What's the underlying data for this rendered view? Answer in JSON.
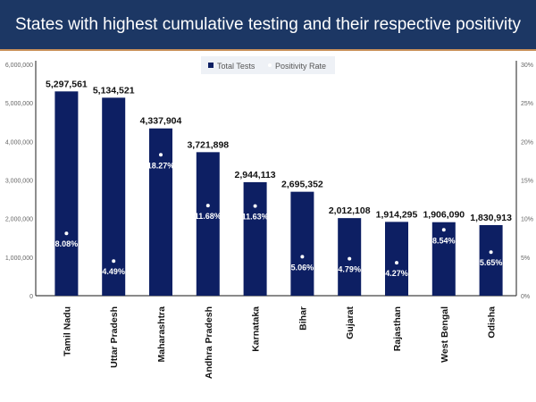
{
  "chart_data": {
    "type": "bar",
    "title": "States with highest cumulative testing and their respective positivity rate",
    "categories": [
      "Tamil Nadu",
      "Uttar Pradesh",
      "Maharashtra",
      "Andhra Pradesh",
      "Karnataka",
      "Bihar",
      "Gujarat",
      "Rajasthan",
      "West Bengal",
      "Odisha"
    ],
    "series": [
      {
        "name": "Total Tests",
        "type": "bar",
        "axis": "left",
        "color": "#0d1f63",
        "values": [
          5297561,
          5134521,
          4337904,
          3721898,
          2944113,
          2695352,
          2012108,
          1914295,
          1906090,
          1830913
        ],
        "labels": [
          "5,297,561",
          "5,134,521",
          "4,337,904",
          "3,721,898",
          "2,944,113",
          "2,695,352",
          "2,012,108",
          "1,914,295",
          "1,906,090",
          "1,830,913"
        ]
      },
      {
        "name": "Positivity Rate",
        "type": "scatter",
        "axis": "right",
        "color": "#ffffff",
        "values": [
          8.08,
          4.49,
          18.27,
          11.68,
          11.63,
          5.06,
          4.79,
          4.27,
          8.54,
          5.65
        ],
        "labels": [
          "8.08%",
          "4.49%",
          "18.27%",
          "11.68%",
          "11.63%",
          "5.06%",
          "4.79%",
          "4.27%",
          "8.54%",
          "5.65%"
        ]
      }
    ],
    "ylim": [
      0,
      6000000
    ],
    "y2lim": [
      0,
      30
    ],
    "yticks": [
      "0",
      "1,000,000",
      "2,000,000",
      "3,000,000",
      "4,000,000",
      "5,000,000",
      "6,000,000"
    ],
    "y2ticks": [
      "0%",
      "5%",
      "10%",
      "15%",
      "20%",
      "25%",
      "30%"
    ],
    "legend": "top-center",
    "grid": false
  }
}
